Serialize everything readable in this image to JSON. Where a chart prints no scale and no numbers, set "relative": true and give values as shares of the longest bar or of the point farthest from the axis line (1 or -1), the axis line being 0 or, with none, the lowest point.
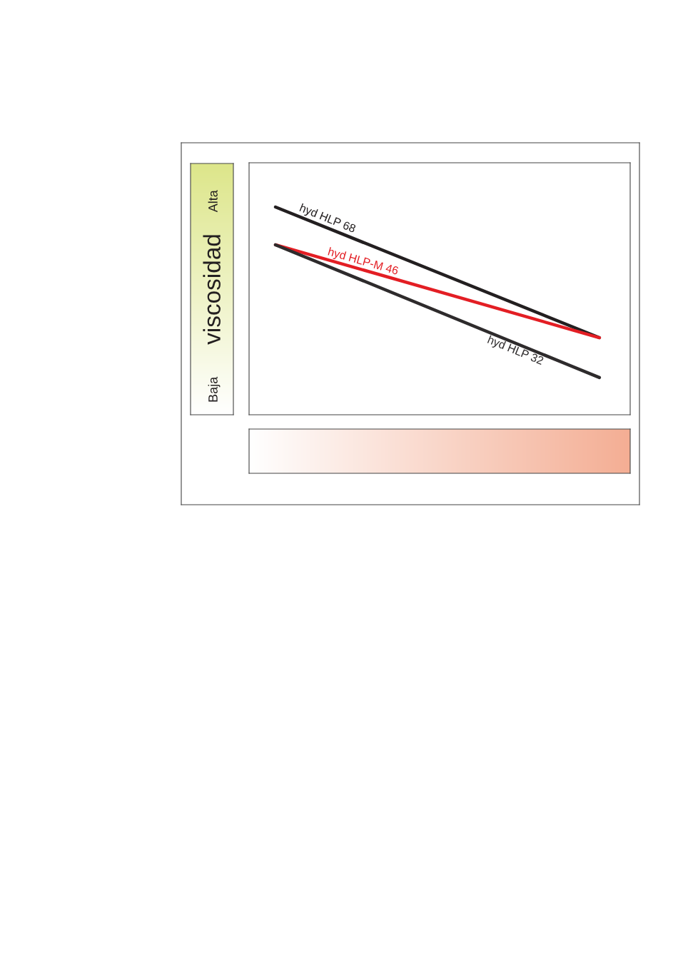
{
  "chart_data": {
    "type": "line",
    "relative": true,
    "ylabel": "viscosidad",
    "annotations": [
      "Alta",
      "Baja"
    ],
    "categories": [
      null,
      null
    ],
    "series": [
      {
        "name": "hyd HLP 68",
        "color": "#231f20",
        "values": [
          1.0,
          0.371
        ]
      },
      {
        "name": "hyd HLP-M 46",
        "color": "#e31e24",
        "values": [
          0.818,
          0.371
        ]
      },
      {
        "name": "hyd HLP 32",
        "color": "#2e2b2c",
        "values": [
          0.818,
          0.179
        ]
      }
    ]
  }
}
